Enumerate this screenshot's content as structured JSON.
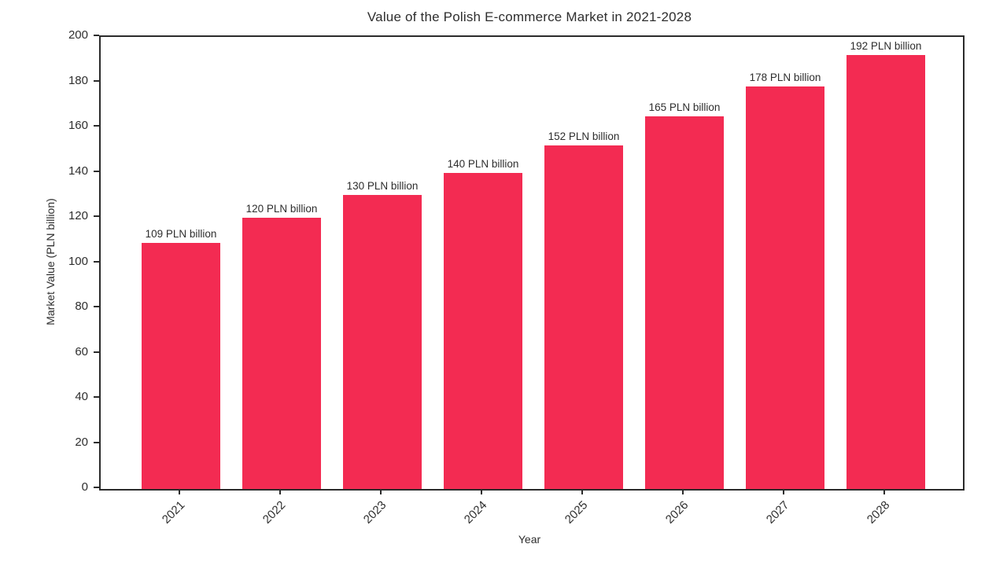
{
  "figure": {
    "background": "#ffffff"
  },
  "chart_data": {
    "type": "bar",
    "title": "Value of the Polish E-commerce Market in 2021-2028",
    "xlabel": "Year",
    "ylabel": "Market Value (PLN billion)",
    "categories": [
      "2021",
      "2022",
      "2023",
      "2024",
      "2025",
      "2026",
      "2027",
      "2028"
    ],
    "values": [
      109,
      120,
      130,
      140,
      152,
      165,
      178,
      192
    ],
    "bar_labels": [
      "109 PLN billion",
      "120 PLN billion",
      "130 PLN billion",
      "140 PLN billion",
      "152 PLN billion",
      "165 PLN billion",
      "178 PLN billion",
      "192 PLN billion"
    ],
    "ylim": [
      0,
      200
    ],
    "yticks": [
      0,
      20,
      40,
      60,
      80,
      100,
      120,
      140,
      160,
      180,
      200
    ],
    "grid": false,
    "legend_position": "none",
    "bar_color": "#f32b52",
    "text_color": "#2e2e2e",
    "spine_color": "#2b2b2b",
    "x_tick_rotation_deg": 45
  }
}
